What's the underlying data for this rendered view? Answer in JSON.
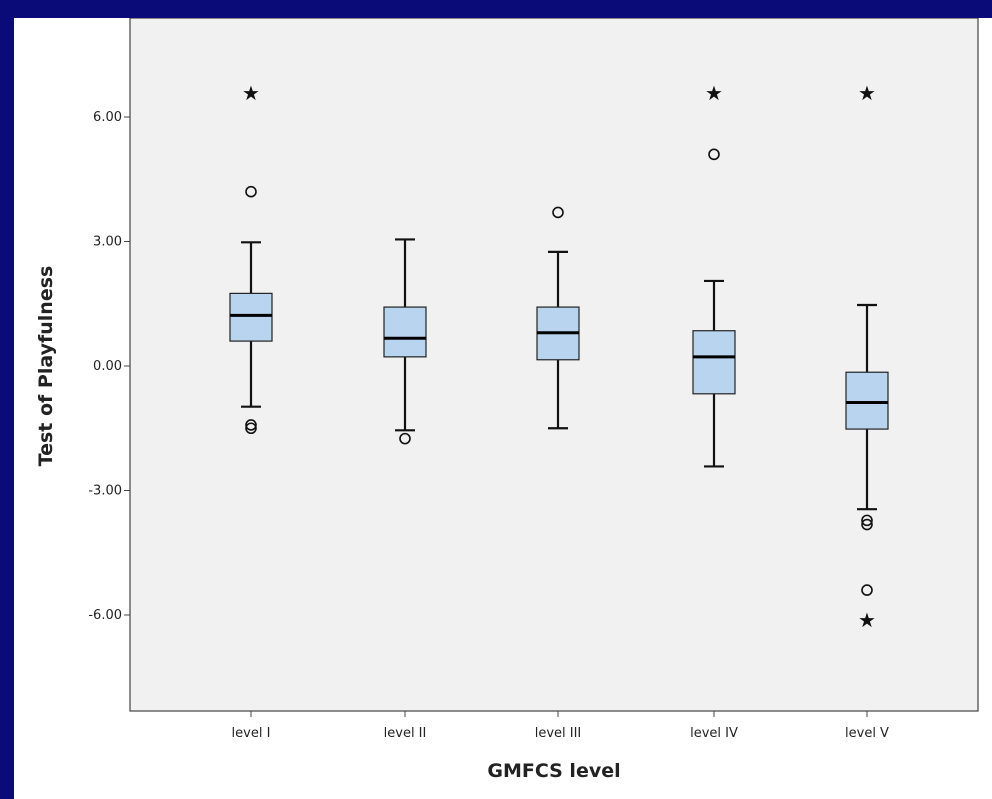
{
  "chart_data": {
    "type": "box",
    "title": "",
    "xlabel": "GMFCS level",
    "ylabel": "Test of Playfulness",
    "categories": [
      "level I",
      "level II",
      "level III",
      "level IV",
      "level V"
    ],
    "ylim": [
      -8.0,
      8.0
    ],
    "yticks": [
      6.0,
      3.0,
      0.0,
      -3.0,
      -6.0
    ],
    "ytick_labels": [
      "6.00",
      "3.00",
      "0.00",
      "-3.00",
      "-6.00"
    ],
    "grid": false,
    "colors": {
      "box_fill": "#b8d4ee",
      "plot_bg": "#f1f1f1",
      "frame": "#444444",
      "slide_bg": "#0a0a78"
    },
    "boxes": [
      {
        "category": "level I",
        "whisker_low": -0.98,
        "q1": 0.6,
        "median": 1.22,
        "q3": 1.75,
        "whisker_high": 2.98,
        "outliers_circle": [
          4.2,
          -1.42,
          -1.5
        ],
        "outliers_star": [
          6.6
        ]
      },
      {
        "category": "level II",
        "whisker_low": -1.55,
        "q1": 0.22,
        "median": 0.67,
        "q3": 1.42,
        "whisker_high": 3.05,
        "outliers_circle": [
          -1.75
        ],
        "outliers_star": []
      },
      {
        "category": "level III",
        "whisker_low": -1.5,
        "q1": 0.15,
        "median": 0.8,
        "q3": 1.42,
        "whisker_high": 2.75,
        "outliers_circle": [
          3.7
        ],
        "outliers_star": []
      },
      {
        "category": "level IV",
        "whisker_low": -2.42,
        "q1": -0.67,
        "median": 0.22,
        "q3": 0.85,
        "whisker_high": 2.05,
        "outliers_circle": [
          5.1
        ],
        "outliers_star": [
          6.6
        ]
      },
      {
        "category": "level V",
        "whisker_low": -3.45,
        "q1": -1.52,
        "median": -0.88,
        "q3": -0.15,
        "whisker_high": 1.47,
        "outliers_circle": [
          -3.72,
          -3.82,
          -5.4
        ],
        "outliers_star": [
          6.6,
          -6.1
        ]
      }
    ]
  }
}
